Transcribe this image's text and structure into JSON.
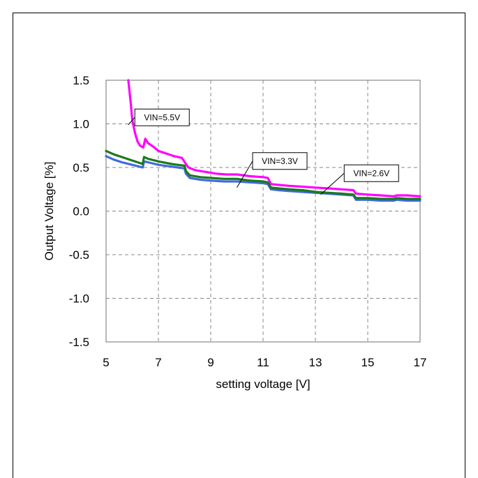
{
  "chart_data": {
    "type": "line",
    "xlabel": "setting voltage [V]",
    "ylabel": "Output Voltage [%]",
    "xlim": [
      5,
      17
    ],
    "ylim": [
      -1.5,
      1.5
    ],
    "x_ticks": [
      5,
      7,
      9,
      11,
      13,
      15,
      17
    ],
    "x_tick_labels": [
      "5",
      "7",
      "9",
      "11",
      "13",
      "15",
      "17"
    ],
    "y_ticks": [
      -1.5,
      -1.0,
      -0.5,
      0.0,
      0.5,
      1.0,
      1.5
    ],
    "y_tick_labels": [
      "-1.5",
      "-1.0",
      "-0.5",
      "0.0",
      "0.5",
      "1.0",
      "1.5"
    ],
    "grid": true,
    "grid_style": "dashed",
    "legend": "none",
    "series": [
      {
        "name": "VIN=5.5V",
        "color": "#ff00ff",
        "x": [
          5.85,
          5.95,
          6.0,
          6.1,
          6.2,
          6.3,
          6.42,
          6.5,
          6.6,
          6.8,
          7.0,
          7.3,
          7.6,
          7.9,
          8.03,
          8.15,
          8.4,
          8.8,
          9.2,
          9.6,
          10.0,
          10.5,
          11.0,
          11.18,
          11.3,
          11.6,
          12.0,
          12.5,
          13.0,
          13.5,
          14.0,
          14.45,
          14.55,
          15.0,
          15.5,
          16.0,
          16.1,
          16.5,
          17.0
        ],
        "y": [
          1.5,
          1.22,
          1.05,
          0.9,
          0.8,
          0.75,
          0.73,
          0.83,
          0.78,
          0.74,
          0.69,
          0.66,
          0.63,
          0.61,
          0.55,
          0.5,
          0.47,
          0.45,
          0.43,
          0.42,
          0.42,
          0.4,
          0.39,
          0.38,
          0.31,
          0.3,
          0.29,
          0.28,
          0.27,
          0.26,
          0.25,
          0.24,
          0.2,
          0.19,
          0.18,
          0.17,
          0.18,
          0.18,
          0.17
        ]
      },
      {
        "name": "VIN=3.3V",
        "color": "#1a7a1a",
        "x": [
          5.0,
          5.3,
          5.6,
          6.0,
          6.4,
          6.45,
          6.6,
          7.0,
          7.5,
          8.0,
          8.05,
          8.2,
          8.6,
          9.0,
          9.5,
          10.0,
          10.5,
          11.0,
          11.18,
          11.3,
          11.6,
          12.0,
          12.5,
          13.0,
          13.5,
          14.0,
          14.45,
          14.55,
          15.0,
          15.5,
          16.0,
          16.1,
          16.5,
          17.0
        ],
        "y": [
          0.69,
          0.65,
          0.62,
          0.58,
          0.54,
          0.62,
          0.6,
          0.57,
          0.54,
          0.52,
          0.46,
          0.41,
          0.39,
          0.38,
          0.37,
          0.37,
          0.35,
          0.34,
          0.33,
          0.27,
          0.26,
          0.25,
          0.24,
          0.22,
          0.21,
          0.2,
          0.19,
          0.15,
          0.15,
          0.14,
          0.14,
          0.15,
          0.14,
          0.14
        ]
      },
      {
        "name": "VIN=2.6V",
        "color": "#4169e1",
        "x": [
          5.0,
          5.3,
          5.6,
          6.0,
          6.4,
          6.45,
          6.6,
          7.0,
          7.5,
          8.0,
          8.05,
          8.2,
          8.6,
          9.0,
          9.5,
          10.0,
          10.5,
          11.0,
          11.18,
          11.3,
          11.6,
          12.0,
          12.5,
          13.0,
          13.5,
          14.0,
          14.45,
          14.55,
          15.0,
          15.5,
          16.0,
          16.1,
          16.5,
          17.0
        ],
        "y": [
          0.63,
          0.59,
          0.56,
          0.53,
          0.5,
          0.57,
          0.56,
          0.53,
          0.51,
          0.49,
          0.43,
          0.38,
          0.36,
          0.35,
          0.34,
          0.34,
          0.33,
          0.32,
          0.31,
          0.25,
          0.24,
          0.23,
          0.22,
          0.21,
          0.2,
          0.19,
          0.18,
          0.13,
          0.13,
          0.12,
          0.12,
          0.13,
          0.12,
          0.12
        ]
      }
    ],
    "annotations": [
      {
        "text": "VIN=5.5V",
        "series": 0,
        "box_x": 6.1,
        "box_y": 1.17,
        "point_x": 5.85,
        "point_y": 0.99
      },
      {
        "text": "VIN=3.3V",
        "series": 1,
        "box_x": 10.6,
        "box_y": 0.67,
        "point_x": 10.0,
        "point_y": 0.27
      },
      {
        "text": "VIN=2.6V",
        "series": 2,
        "box_x": 14.1,
        "box_y": 0.53,
        "point_x": 13.2,
        "point_y": 0.19
      }
    ]
  }
}
